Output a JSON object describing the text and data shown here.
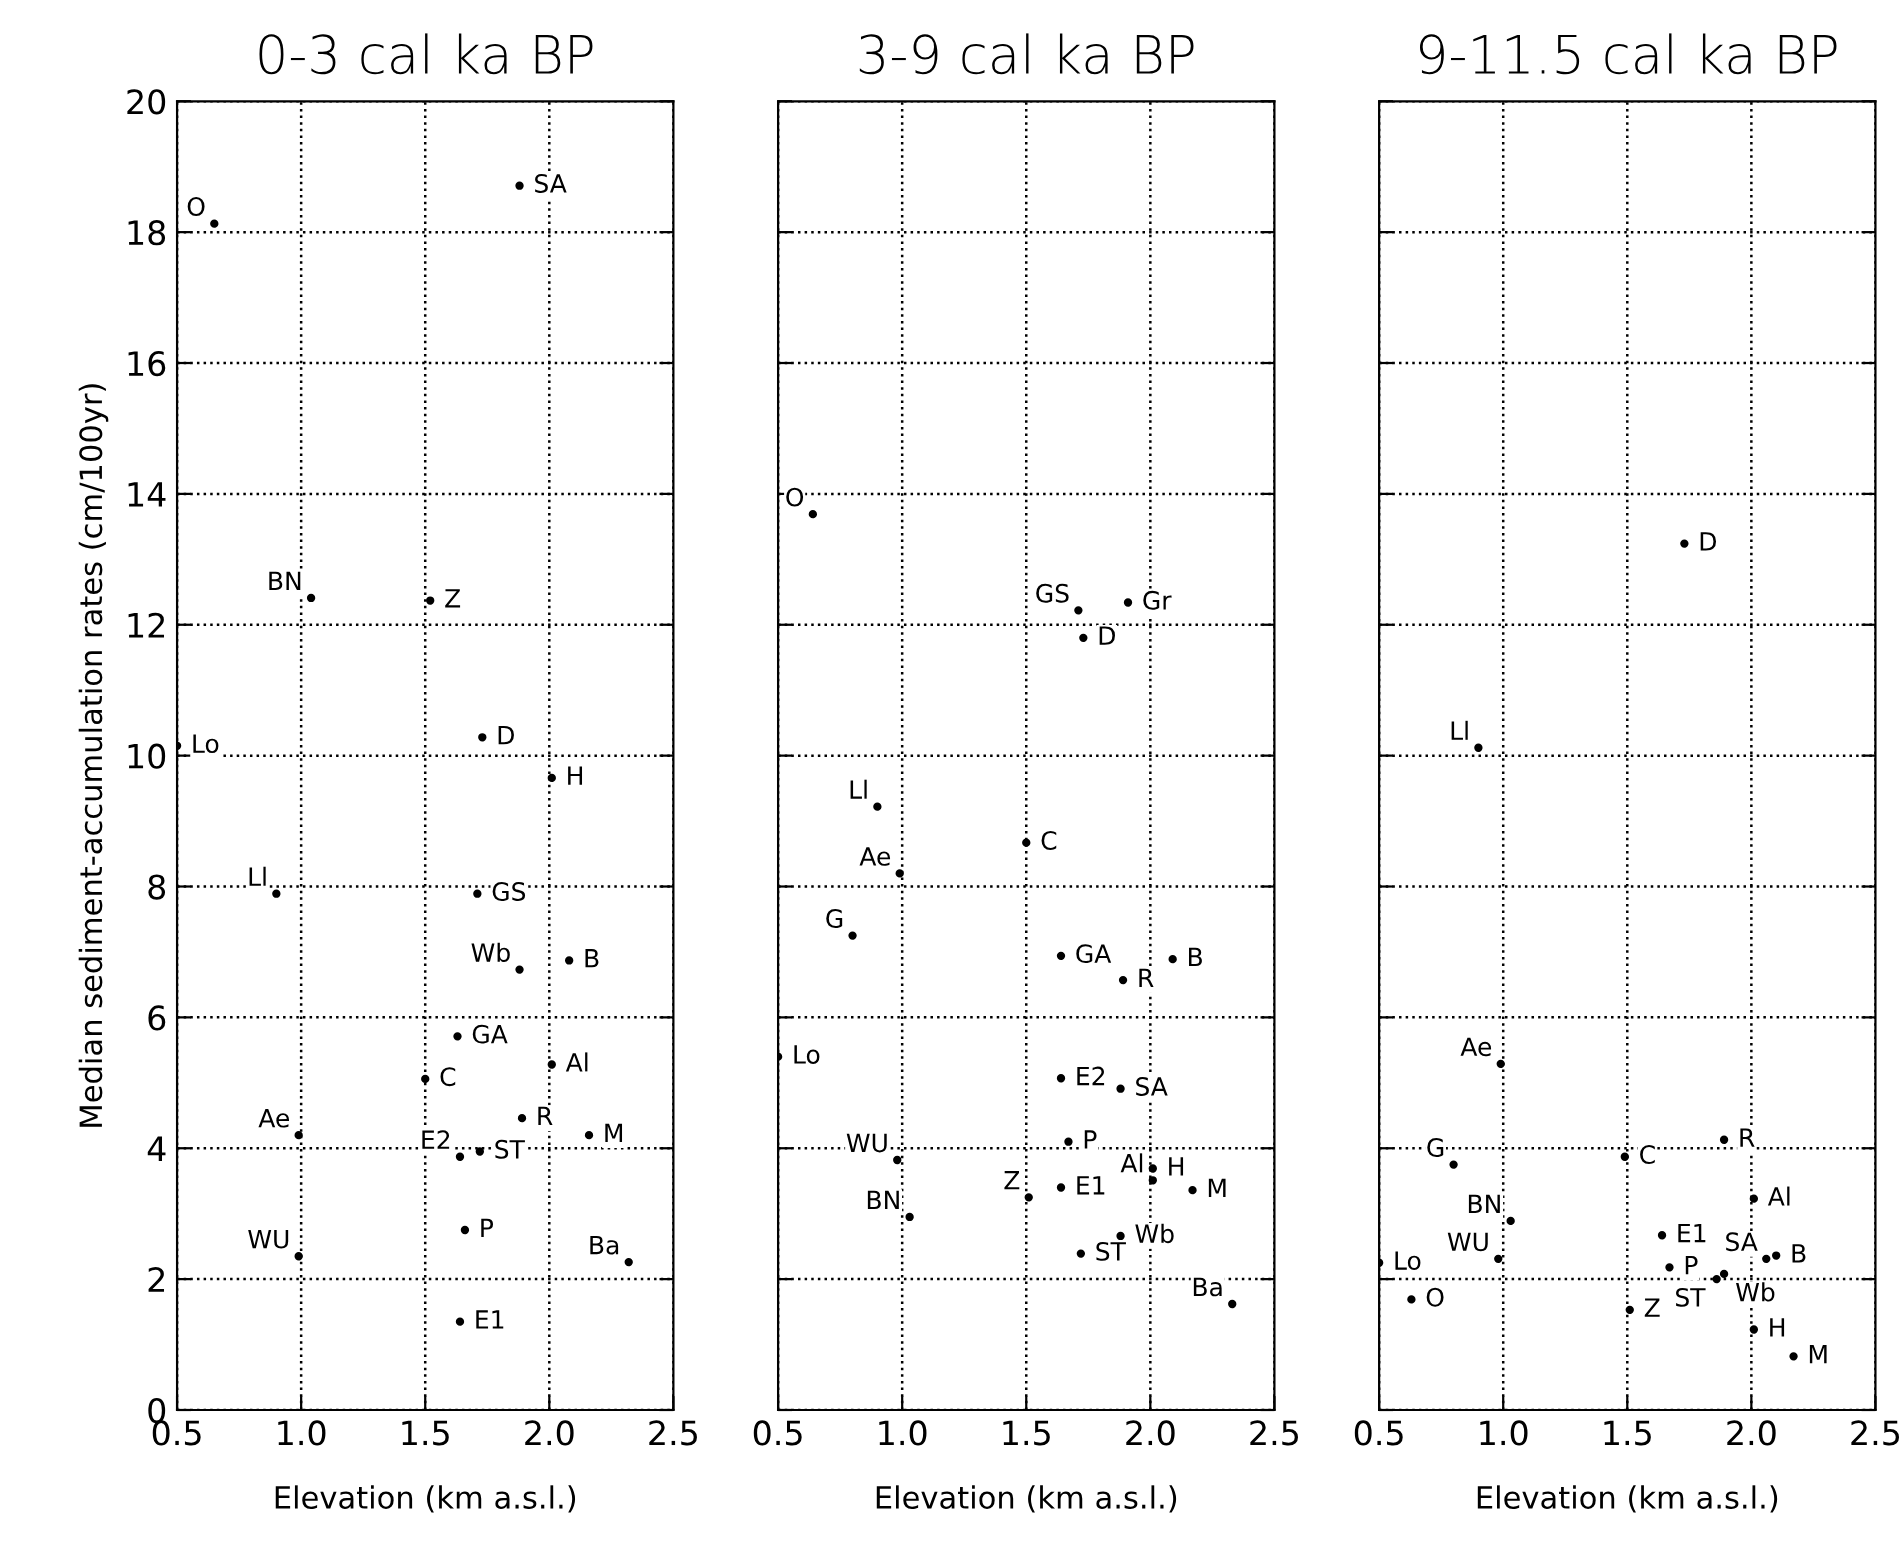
{
  "chart_data": [
    {
      "type": "scatter",
      "title": "0-3 cal ka BP",
      "xlabel": "Elevation (km a.s.l.)",
      "ylabel": "Median sediment-accumulation rates (cm/100yr)",
      "xlim": [
        0.5,
        2.5
      ],
      "xticks": [
        {
          "value": 0.5,
          "label": "0.5"
        },
        {
          "value": 1.0,
          "label": "1.0"
        },
        {
          "value": 1.5,
          "label": "1.5"
        },
        {
          "value": 2.0,
          "label": "2.0"
        },
        {
          "value": 2.5,
          "label": "2.5"
        }
      ],
      "ylim": [
        0,
        20
      ],
      "yticks": [
        0,
        2,
        4,
        6,
        8,
        10,
        12,
        14,
        16,
        18,
        20
      ],
      "grid": true,
      "marker": "circle",
      "series": [
        {
          "color": "#000000",
          "x": [
            1.88,
            0.65,
            1.04,
            1.52,
            1.73,
            0.5,
            2.01,
            0.9,
            1.71,
            1.88,
            2.08,
            1.63,
            2.01,
            1.5,
            1.89,
            0.99,
            2.16,
            1.64,
            1.72,
            1.66,
            0.99,
            2.32,
            1.64
          ],
          "values": [
            18.71,
            18.13,
            12.41,
            12.37,
            10.28,
            10.15,
            9.66,
            7.89,
            7.89,
            6.73,
            6.87,
            5.71,
            5.28,
            5.06,
            4.46,
            4.2,
            4.2,
            3.87,
            3.95,
            2.75,
            2.35,
            2.26,
            1.35
          ]
        }
      ],
      "annotations": [
        {
          "text": "SA",
          "x": 1.88,
          "y": 18.71
        },
        {
          "text": "O",
          "x": 0.65,
          "y": 18.13
        },
        {
          "text": "BN",
          "x": 1.04,
          "y": 12.41
        },
        {
          "text": "Z",
          "x": 1.52,
          "y": 12.37
        },
        {
          "text": "D",
          "x": 1.73,
          "y": 10.28
        },
        {
          "text": "Lo",
          "x": 0.5,
          "y": 10.15
        },
        {
          "text": "H",
          "x": 2.01,
          "y": 9.66
        },
        {
          "text": "Ll",
          "x": 0.9,
          "y": 7.89
        },
        {
          "text": "GS",
          "x": 1.71,
          "y": 7.89
        },
        {
          "text": "Wb",
          "x": 1.88,
          "y": 6.73
        },
        {
          "text": "B",
          "x": 2.08,
          "y": 6.87
        },
        {
          "text": "GA",
          "x": 1.63,
          "y": 5.71
        },
        {
          "text": "Al",
          "x": 2.01,
          "y": 5.28
        },
        {
          "text": "C",
          "x": 1.5,
          "y": 5.06
        },
        {
          "text": "R",
          "x": 1.89,
          "y": 4.46
        },
        {
          "text": "Ae",
          "x": 0.99,
          "y": 4.2
        },
        {
          "text": "M",
          "x": 2.16,
          "y": 4.2
        },
        {
          "text": "E2",
          "x": 1.64,
          "y": 3.87
        },
        {
          "text": "ST",
          "x": 1.72,
          "y": 3.95
        },
        {
          "text": "P",
          "x": 1.66,
          "y": 2.75
        },
        {
          "text": "WU",
          "x": 0.99,
          "y": 2.35
        },
        {
          "text": "Ba",
          "x": 2.32,
          "y": 2.26
        },
        {
          "text": "E1",
          "x": 1.64,
          "y": 1.35
        }
      ]
    },
    {
      "type": "scatter",
      "title": "3-9 cal ka BP",
      "xlabel": "Elevation (km a.s.l.)",
      "xlim": [
        0.5,
        2.5
      ],
      "xticks": [
        {
          "value": 0.5,
          "label": "0.5"
        },
        {
          "value": 1.0,
          "label": "1.0"
        },
        {
          "value": 1.5,
          "label": "1.5"
        },
        {
          "value": 2.0,
          "label": "2.0"
        },
        {
          "value": 2.5,
          "label": "2.5"
        }
      ],
      "ylim": [
        0,
        20
      ],
      "yticks": [
        0,
        2,
        4,
        6,
        8,
        10,
        12,
        14,
        16,
        18,
        20
      ],
      "grid": true,
      "marker": "circle",
      "tick_labels": "x",
      "series": [
        {
          "color": "#000000",
          "x": [
            0.64,
            1.71,
            1.91,
            1.73,
            0.9,
            1.5,
            0.99,
            0.8,
            1.64,
            2.09,
            1.89,
            0.5,
            1.64,
            1.88,
            1.67,
            0.98,
            2.01,
            2.01,
            2.17,
            1.64,
            1.51,
            1.03,
            1.88,
            1.72,
            2.33
          ],
          "values": [
            13.69,
            12.22,
            12.34,
            11.8,
            9.22,
            8.67,
            8.2,
            7.25,
            6.94,
            6.89,
            6.57,
            5.4,
            5.07,
            4.91,
            4.1,
            3.82,
            3.69,
            3.51,
            3.36,
            3.4,
            3.25,
            2.95,
            2.66,
            2.39,
            1.62
          ]
        }
      ],
      "annotations": [
        {
          "text": "O",
          "x": 0.64,
          "y": 13.69
        },
        {
          "text": "GS",
          "x": 1.71,
          "y": 12.22
        },
        {
          "text": "Gr",
          "x": 1.91,
          "y": 12.34
        },
        {
          "text": "D",
          "x": 1.73,
          "y": 11.8
        },
        {
          "text": "Ll",
          "x": 0.9,
          "y": 9.22
        },
        {
          "text": "C",
          "x": 1.5,
          "y": 8.67
        },
        {
          "text": "Ae",
          "x": 0.99,
          "y": 8.2
        },
        {
          "text": "G",
          "x": 0.8,
          "y": 7.25
        },
        {
          "text": "GA",
          "x": 1.64,
          "y": 6.94
        },
        {
          "text": "B",
          "x": 2.09,
          "y": 6.89
        },
        {
          "text": "R",
          "x": 1.89,
          "y": 6.57
        },
        {
          "text": "Lo",
          "x": 0.5,
          "y": 5.4
        },
        {
          "text": "E2",
          "x": 1.64,
          "y": 5.07
        },
        {
          "text": "SA",
          "x": 1.88,
          "y": 4.91
        },
        {
          "text": "P",
          "x": 1.67,
          "y": 4.1
        },
        {
          "text": "WU",
          "x": 0.98,
          "y": 3.82
        },
        {
          "text": "H",
          "x": 2.01,
          "y": 3.69
        },
        {
          "text": "Al",
          "x": 2.01,
          "y": 3.51
        },
        {
          "text": "M",
          "x": 2.17,
          "y": 3.36
        },
        {
          "text": "E1",
          "x": 1.64,
          "y": 3.4
        },
        {
          "text": "Z",
          "x": 1.51,
          "y": 3.25
        },
        {
          "text": "BN",
          "x": 1.03,
          "y": 2.95
        },
        {
          "text": "Wb",
          "x": 1.88,
          "y": 2.66
        },
        {
          "text": "ST",
          "x": 1.72,
          "y": 2.39
        },
        {
          "text": "Ba",
          "x": 2.33,
          "y": 1.62
        }
      ]
    },
    {
      "type": "scatter",
      "title": "9-11.5 cal ka BP",
      "xlabel": "Elevation (km a.s.l.)",
      "xlim": [
        0.5,
        2.5
      ],
      "xticks": [
        {
          "value": 0.5,
          "label": "0.5"
        },
        {
          "value": 1.0,
          "label": "1.0"
        },
        {
          "value": 1.5,
          "label": "1.5"
        },
        {
          "value": 2.0,
          "label": "2.0"
        },
        {
          "value": 2.5,
          "label": "2.5"
        }
      ],
      "ylim": [
        0,
        20
      ],
      "yticks": [
        0,
        2,
        4,
        6,
        8,
        10,
        12,
        14,
        16,
        18,
        20
      ],
      "grid": true,
      "marker": "circle",
      "tick_labels": "x",
      "series": [
        {
          "color": "#000000",
          "x": [
            1.73,
            0.9,
            0.99,
            1.89,
            1.49,
            0.8,
            2.01,
            1.03,
            1.64,
            0.98,
            0.5,
            2.1,
            2.06,
            1.67,
            1.89,
            1.86,
            0.63,
            1.51,
            2.01,
            2.17
          ],
          "values": [
            13.24,
            10.12,
            5.29,
            4.13,
            3.87,
            3.75,
            3.23,
            2.89,
            2.67,
            2.31,
            2.25,
            2.36,
            2.31,
            2.18,
            2.08,
            2.0,
            1.69,
            1.53,
            1.23,
            0.82
          ]
        }
      ],
      "annotations": [
        {
          "text": "D",
          "x": 1.73,
          "y": 13.24
        },
        {
          "text": "Ll",
          "x": 0.9,
          "y": 10.12
        },
        {
          "text": "Ae",
          "x": 0.99,
          "y": 5.29
        },
        {
          "text": "R",
          "x": 1.89,
          "y": 4.13
        },
        {
          "text": "C",
          "x": 1.49,
          "y": 3.87
        },
        {
          "text": "G",
          "x": 0.8,
          "y": 3.75
        },
        {
          "text": "Al",
          "x": 2.01,
          "y": 3.23
        },
        {
          "text": "BN",
          "x": 1.03,
          "y": 2.89
        },
        {
          "text": "E1",
          "x": 1.64,
          "y": 2.67
        },
        {
          "text": "WU",
          "x": 0.98,
          "y": 2.31
        },
        {
          "text": "Lo",
          "x": 0.5,
          "y": 2.25
        },
        {
          "text": "B",
          "x": 2.1,
          "y": 2.36
        },
        {
          "text": "SA",
          "x": 2.06,
          "y": 2.31
        },
        {
          "text": "P",
          "x": 1.67,
          "y": 2.18
        },
        {
          "text": "Wb",
          "x": 1.89,
          "y": 2.08
        },
        {
          "text": "ST",
          "x": 1.86,
          "y": 2.0
        },
        {
          "text": "O",
          "x": 0.63,
          "y": 1.69
        },
        {
          "text": "Z",
          "x": 1.51,
          "y": 1.53
        },
        {
          "text": "H",
          "x": 2.01,
          "y": 1.23
        },
        {
          "text": "M",
          "x": 2.17,
          "y": 0.82
        }
      ]
    }
  ]
}
